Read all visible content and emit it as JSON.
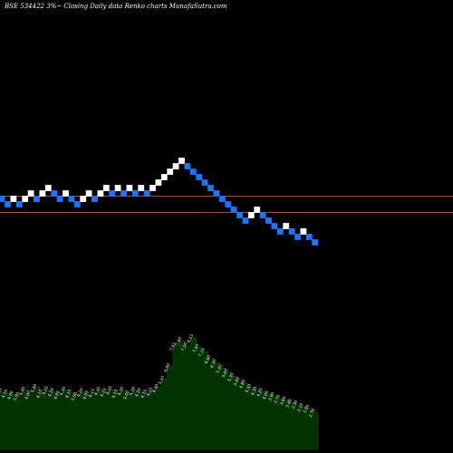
{
  "chart_data": {
    "type": "renko",
    "title": "BSE 534422  3%~  Closing Daily data  Renko  charts MunafaSutra.com",
    "colors": {
      "background": "#000000",
      "up_brick": "#ffffff",
      "down_brick": "#1e74ff",
      "reference_line": "#a0522d",
      "volume_fill": "#003300",
      "volume_line": "#1a4d1a"
    },
    "bricks": [
      {
        "x": 1,
        "y": 0,
        "dir": "down"
      },
      {
        "x": 2,
        "y": -1,
        "dir": "down"
      },
      {
        "x": 3,
        "y": 0,
        "dir": "up"
      },
      {
        "x": 4,
        "y": -1,
        "dir": "down"
      },
      {
        "x": 5,
        "y": 0,
        "dir": "up"
      },
      {
        "x": 6,
        "y": 1,
        "dir": "up"
      },
      {
        "x": 7,
        "y": 0,
        "dir": "down"
      },
      {
        "x": 8,
        "y": 1,
        "dir": "up"
      },
      {
        "x": 9,
        "y": 2,
        "dir": "up"
      },
      {
        "x": 10,
        "y": 1,
        "dir": "down"
      },
      {
        "x": 11,
        "y": 0,
        "dir": "down"
      },
      {
        "x": 12,
        "y": 1,
        "dir": "up"
      },
      {
        "x": 13,
        "y": 0,
        "dir": "down"
      },
      {
        "x": 14,
        "y": -1,
        "dir": "down"
      },
      {
        "x": 15,
        "y": 0,
        "dir": "up"
      },
      {
        "x": 16,
        "y": 1,
        "dir": "up"
      },
      {
        "x": 17,
        "y": 0,
        "dir": "down"
      },
      {
        "x": 18,
        "y": 1,
        "dir": "up"
      },
      {
        "x": 19,
        "y": 2,
        "dir": "up"
      },
      {
        "x": 20,
        "y": 1,
        "dir": "down"
      },
      {
        "x": 21,
        "y": 2,
        "dir": "up"
      },
      {
        "x": 22,
        "y": 1,
        "dir": "down"
      },
      {
        "x": 23,
        "y": 2,
        "dir": "up"
      },
      {
        "x": 24,
        "y": 1,
        "dir": "down"
      },
      {
        "x": 25,
        "y": 2,
        "dir": "up"
      },
      {
        "x": 26,
        "y": 1,
        "dir": "down"
      },
      {
        "x": 27,
        "y": 2,
        "dir": "up"
      },
      {
        "x": 28,
        "y": 3,
        "dir": "up"
      },
      {
        "x": 29,
        "y": 4,
        "dir": "up"
      },
      {
        "x": 30,
        "y": 5,
        "dir": "up"
      },
      {
        "x": 31,
        "y": 6,
        "dir": "up"
      },
      {
        "x": 32,
        "y": 7,
        "dir": "up"
      },
      {
        "x": 33,
        "y": 6,
        "dir": "down"
      },
      {
        "x": 34,
        "y": 5,
        "dir": "down"
      },
      {
        "x": 35,
        "y": 4,
        "dir": "down"
      },
      {
        "x": 36,
        "y": 3,
        "dir": "down"
      },
      {
        "x": 37,
        "y": 2,
        "dir": "down"
      },
      {
        "x": 38,
        "y": 1,
        "dir": "down"
      },
      {
        "x": 39,
        "y": 0,
        "dir": "down"
      },
      {
        "x": 40,
        "y": -1,
        "dir": "down"
      },
      {
        "x": 41,
        "y": -2,
        "dir": "down"
      },
      {
        "x": 42,
        "y": -3,
        "dir": "down"
      },
      {
        "x": 43,
        "y": -4,
        "dir": "down"
      },
      {
        "x": 44,
        "y": -3,
        "dir": "up"
      },
      {
        "x": 45,
        "y": -2,
        "dir": "up"
      },
      {
        "x": 46,
        "y": -3,
        "dir": "down"
      },
      {
        "x": 47,
        "y": -4,
        "dir": "down"
      },
      {
        "x": 48,
        "y": -5,
        "dir": "down"
      },
      {
        "x": 49,
        "y": -6,
        "dir": "down"
      },
      {
        "x": 50,
        "y": -5,
        "dir": "up"
      },
      {
        "x": 51,
        "y": -6,
        "dir": "down"
      },
      {
        "x": 52,
        "y": -7,
        "dir": "down"
      },
      {
        "x": 53,
        "y": -6,
        "dir": "up"
      },
      {
        "x": 54,
        "y": -7,
        "dir": "down"
      },
      {
        "x": 55,
        "y": -8,
        "dir": "down"
      }
    ],
    "reference_lines": [
      0,
      -3
    ],
    "volume": [
      {
        "x": 1,
        "value": 4.2,
        "label": "4.20"
      },
      {
        "x": 2,
        "value": 4.1,
        "label": "4.10"
      },
      {
        "x": 3,
        "value": 4.0,
        "label": "4.00"
      },
      {
        "x": 4,
        "value": 3.9,
        "label": "3.90"
      },
      {
        "x": 5,
        "value": 4.3,
        "label": "4.30"
      },
      {
        "x": 6,
        "value": 4.0,
        "label": "4.00"
      },
      {
        "x": 7,
        "value": 4.5,
        "label": "4.50"
      },
      {
        "x": 8,
        "value": 4.1,
        "label": "4.10"
      },
      {
        "x": 9,
        "value": 4.35,
        "label": "4.35"
      },
      {
        "x": 10,
        "value": 4.2,
        "label": "4.20"
      },
      {
        "x": 11,
        "value": 4.0,
        "label": "4.00"
      },
      {
        "x": 12,
        "value": 4.3,
        "label": "4.30"
      },
      {
        "x": 13,
        "value": 4.1,
        "label": "4.10"
      },
      {
        "x": 14,
        "value": 3.9,
        "label": "3.90"
      },
      {
        "x": 15,
        "value": 4.2,
        "label": "4.20"
      },
      {
        "x": 16,
        "value": 4.0,
        "label": "4.00"
      },
      {
        "x": 17,
        "value": 4.15,
        "label": "4.15"
      },
      {
        "x": 18,
        "value": 4.3,
        "label": "4.30"
      },
      {
        "x": 19,
        "value": 4.2,
        "label": "4.20"
      },
      {
        "x": 20,
        "value": 4.35,
        "label": "4.35"
      },
      {
        "x": 21,
        "value": 4.1,
        "label": "4.10"
      },
      {
        "x": 22,
        "value": 4.3,
        "label": "4.30"
      },
      {
        "x": 23,
        "value": 4.0,
        "label": "4.00"
      },
      {
        "x": 24,
        "value": 4.3,
        "label": "4.30"
      },
      {
        "x": 25,
        "value": 4.2,
        "label": "4.20"
      },
      {
        "x": 26,
        "value": 4.1,
        "label": "4.10"
      },
      {
        "x": 27,
        "value": 4.25,
        "label": "4.25"
      },
      {
        "x": 28,
        "value": 4.5,
        "label": "4.50"
      },
      {
        "x": 29,
        "value": 5.1,
        "label": "5.10"
      },
      {
        "x": 30,
        "value": 6.0,
        "label": "6.00"
      },
      {
        "x": 31,
        "value": 7.52,
        "label": "7.52"
      },
      {
        "x": 32,
        "value": 7.9,
        "label": "7.90"
      },
      {
        "x": 33,
        "value": 7.5,
        "label": "7.50"
      },
      {
        "x": 34,
        "value": 8.12,
        "label": "8.12"
      },
      {
        "x": 35,
        "value": 7.4,
        "label": "7.40"
      },
      {
        "x": 36,
        "value": 7.1,
        "label": "7.10"
      },
      {
        "x": 37,
        "value": 6.6,
        "label": "6.60"
      },
      {
        "x": 38,
        "value": 6.3,
        "label": "6.30"
      },
      {
        "x": 39,
        "value": 5.9,
        "label": "5.90"
      },
      {
        "x": 40,
        "value": 5.6,
        "label": "5.60"
      },
      {
        "x": 41,
        "value": 5.3,
        "label": "5.30"
      },
      {
        "x": 42,
        "value": 5.0,
        "label": "5.00"
      },
      {
        "x": 43,
        "value": 4.8,
        "label": "4.80"
      },
      {
        "x": 44,
        "value": 4.5,
        "label": "4.50"
      },
      {
        "x": 45,
        "value": 4.3,
        "label": "4.30"
      },
      {
        "x": 46,
        "value": 4.2,
        "label": "4.20"
      },
      {
        "x": 47,
        "value": 4.0,
        "label": "4.00"
      },
      {
        "x": 48,
        "value": 3.9,
        "label": "3.90"
      },
      {
        "x": 49,
        "value": 3.7,
        "label": "3.70"
      },
      {
        "x": 50,
        "value": 3.6,
        "label": "3.60"
      },
      {
        "x": 51,
        "value": 3.4,
        "label": "3.40"
      },
      {
        "x": 52,
        "value": 3.3,
        "label": "3.30"
      },
      {
        "x": 53,
        "value": 3.1,
        "label": "3.10"
      },
      {
        "x": 54,
        "value": 3.0,
        "label": "3.00"
      },
      {
        "x": 55,
        "value": 2.7,
        "label": "2.70"
      }
    ],
    "volume_range": [
      0,
      9
    ]
  }
}
